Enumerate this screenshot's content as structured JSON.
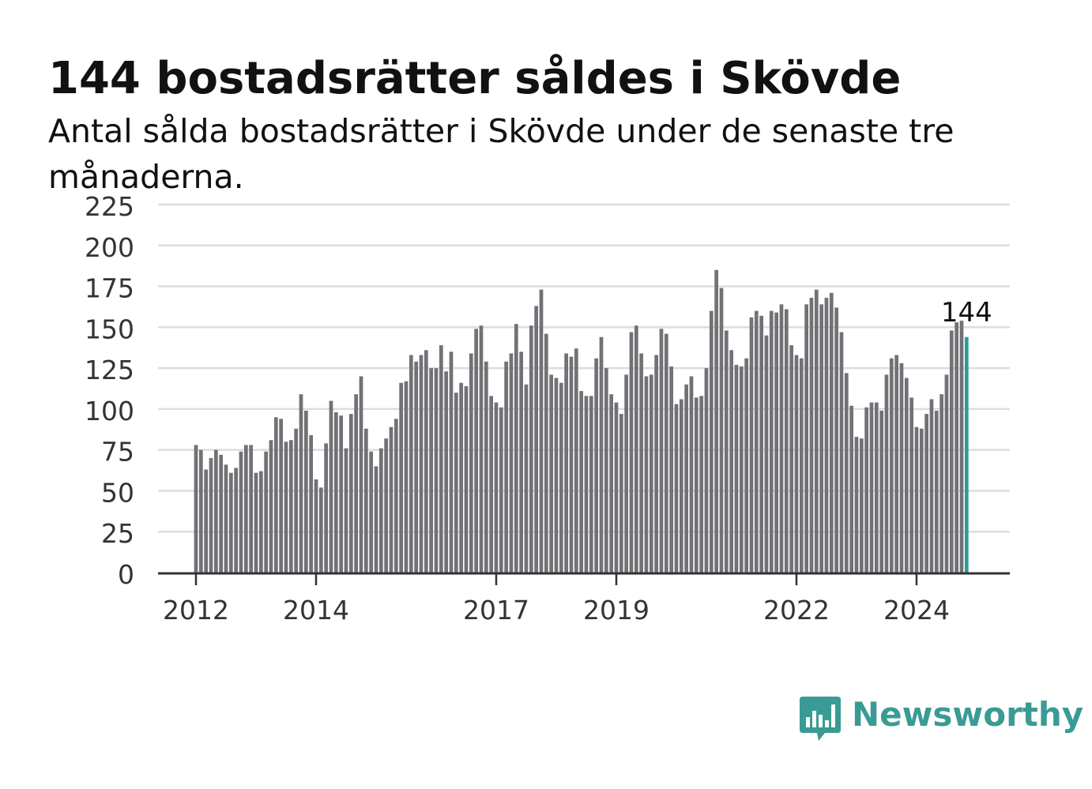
{
  "title": "144 bostadsrätter såldes i Skövde",
  "subtitle": "Antal sålda bostadsrätter i Skövde under de senaste tre månaderna.",
  "brand": {
    "name": "Newsworthy",
    "color": "#3a9b94"
  },
  "colors": {
    "bar": "#727176",
    "highlight": "#2a9d96",
    "grid": "#dddddd",
    "axis": "#333333"
  },
  "chart_data": {
    "type": "bar",
    "title": "144 bostadsrätter såldes i Skövde",
    "subtitle": "Antal sålda bostadsrätter i Skövde under de senaste tre månaderna.",
    "xlabel": "",
    "ylabel": "",
    "ylim": [
      0,
      225
    ],
    "yticks": [
      0,
      25,
      50,
      75,
      100,
      125,
      150,
      175,
      200,
      225
    ],
    "grid": true,
    "x_tick_labels": [
      {
        "label": "2012",
        "index": 0
      },
      {
        "label": "2014",
        "index": 24
      },
      {
        "label": "2017",
        "index": 60
      },
      {
        "label": "2019",
        "index": 84
      },
      {
        "label": "2022",
        "index": 120
      },
      {
        "label": "2024",
        "index": 144
      }
    ],
    "start_period": "2012-01",
    "highlight_label": "144",
    "values": [
      78,
      75,
      63,
      70,
      75,
      72,
      66,
      61,
      64,
      74,
      78,
      78,
      61,
      62,
      74,
      81,
      95,
      94,
      80,
      81,
      88,
      109,
      99,
      84,
      57,
      52,
      79,
      105,
      98,
      96,
      76,
      97,
      109,
      120,
      88,
      74,
      65,
      76,
      82,
      89,
      94,
      116,
      117,
      133,
      129,
      133,
      136,
      125,
      125,
      139,
      123,
      135,
      110,
      116,
      114,
      134,
      149,
      151,
      129,
      108,
      104,
      101,
      129,
      134,
      152,
      135,
      115,
      151,
      163,
      173,
      146,
      121,
      119,
      116,
      134,
      132,
      137,
      111,
      108,
      108,
      131,
      144,
      125,
      109,
      104,
      97,
      121,
      147,
      151,
      134,
      120,
      121,
      133,
      149,
      146,
      126,
      103,
      106,
      115,
      120,
      107,
      108,
      125,
      160,
      185,
      174,
      148,
      136,
      127,
      126,
      131,
      156,
      160,
      157,
      145,
      160,
      159,
      164,
      161,
      139,
      133,
      131,
      164,
      168,
      173,
      164,
      168,
      171,
      162,
      147,
      122,
      102,
      83,
      82,
      101,
      104,
      104,
      99,
      121,
      131,
      133,
      128,
      119,
      107,
      89,
      88,
      97,
      106,
      99,
      109,
      121,
      148,
      153,
      154,
      144
    ]
  }
}
